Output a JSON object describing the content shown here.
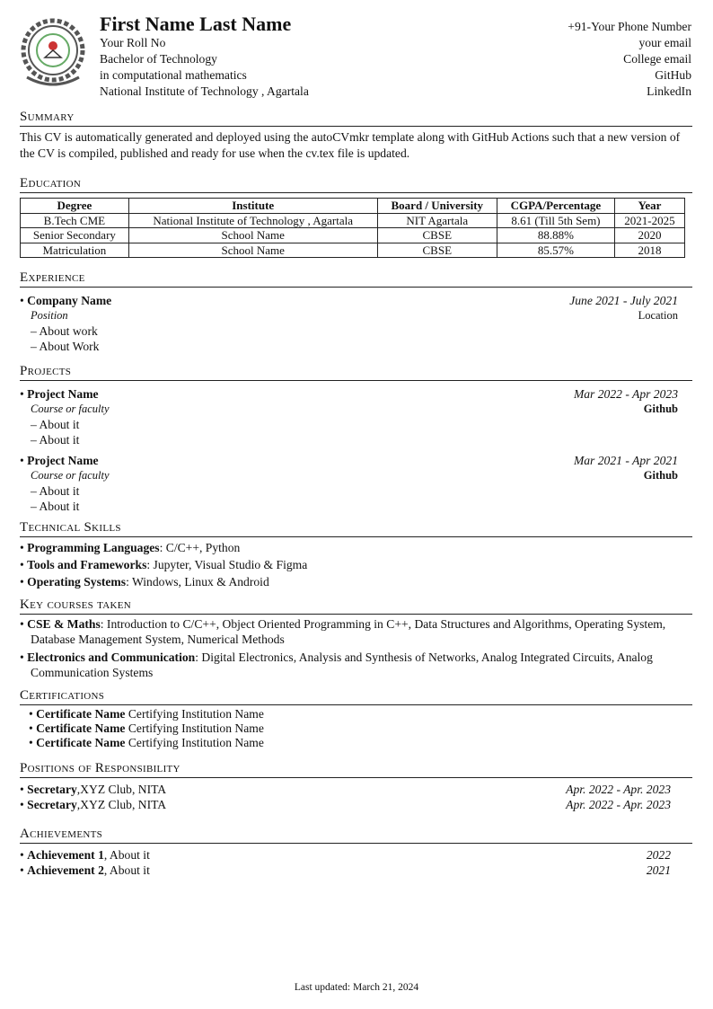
{
  "header": {
    "name": "First Name Last Name",
    "left": [
      "Your Roll No",
      "Bachelor of Technology",
      "in computational mathematics",
      "National Institute of Technology , Agartala"
    ],
    "right": [
      "+91-Your Phone Number",
      "your email",
      "College email",
      "GitHub",
      "LinkedIn"
    ]
  },
  "summary": {
    "title": "Summary",
    "text": "This CV is automatically generated and deployed using the autoCVmkr template along with GitHub Actions such that a new version of the CV is compiled, published and ready for use when the cv.tex file is updated."
  },
  "education": {
    "title": "Education",
    "headers": [
      "Degree",
      "Institute",
      "Board / University",
      "CGPA/Percentage",
      "Year"
    ],
    "rows": [
      [
        "B.Tech CME",
        "National Institute of Technology , Agartala",
        "NIT Agartala",
        "8.61 (Till 5th Sem)",
        "2021-2025"
      ],
      [
        "Senior Secondary",
        "School Name",
        "CBSE",
        "88.88%",
        "2020"
      ],
      [
        "Matriculation",
        "School Name",
        "CBSE",
        "85.57%",
        "2018"
      ]
    ]
  },
  "experience": {
    "title": "Experience",
    "items": [
      {
        "name": "Company Name",
        "date": "June 2021 - July 2021",
        "role": "Position",
        "location": "Location",
        "points": [
          "About work",
          "About Work"
        ]
      }
    ]
  },
  "projects": {
    "title": "Projects",
    "items": [
      {
        "name": "Project Name",
        "date": "Mar 2022 - Apr 2023",
        "role": "Course or faculty",
        "link": "Github",
        "points": [
          "About it",
          "About it"
        ]
      },
      {
        "name": "Project Name",
        "date": "Mar 2021 - Apr 2021",
        "role": "Course or faculty",
        "link": "Github",
        "points": [
          "About it",
          "About it"
        ]
      }
    ]
  },
  "skills": {
    "title": "Technical Skills",
    "items": [
      {
        "label": "Programming Languages",
        "text": ": C/C++, Python"
      },
      {
        "label": "Tools and Frameworks",
        "text": ": Jupyter, Visual Studio & Figma"
      },
      {
        "label": "Operating Systems",
        "text": ": Windows, Linux & Android"
      }
    ]
  },
  "courses": {
    "title": "Key courses taken",
    "items": [
      {
        "label": "CSE & Maths",
        "text": ": Introduction to C/C++, Object Oriented Programming in C++, Data Structures and Algorithms, Operating System, Database Management System, Numerical Methods"
      },
      {
        "label": "Electronics and Communication",
        "text": ": Digital Electronics, Analysis and Synthesis of Networks, Analog Integrated Circuits, Analog Communication Systems"
      }
    ]
  },
  "certifications": {
    "title": "Certifications",
    "items": [
      {
        "name": "Certificate Name",
        "inst": "Certifying Institution Name"
      },
      {
        "name": "Certificate Name",
        "inst": "Certifying Institution Name"
      },
      {
        "name": "Certificate Name",
        "inst": "Certifying Institution Name"
      }
    ]
  },
  "positions": {
    "title": "Positions of Responsibility",
    "items": [
      {
        "role": "Secretary",
        "org": ",XYZ Club, NITA",
        "date": "Apr. 2022 - Apr. 2023"
      },
      {
        "role": "Secretary",
        "org": ",XYZ Club, NITA",
        "date": "Apr. 2022 - Apr. 2023"
      }
    ]
  },
  "achievements": {
    "title": "Achievements",
    "items": [
      {
        "name": "Achievement 1",
        "text": ", About it",
        "year": "2022"
      },
      {
        "name": "Achievement 2",
        "text": ", About it",
        "year": "2021"
      }
    ]
  },
  "footer": "Last updated: March 21, 2024"
}
